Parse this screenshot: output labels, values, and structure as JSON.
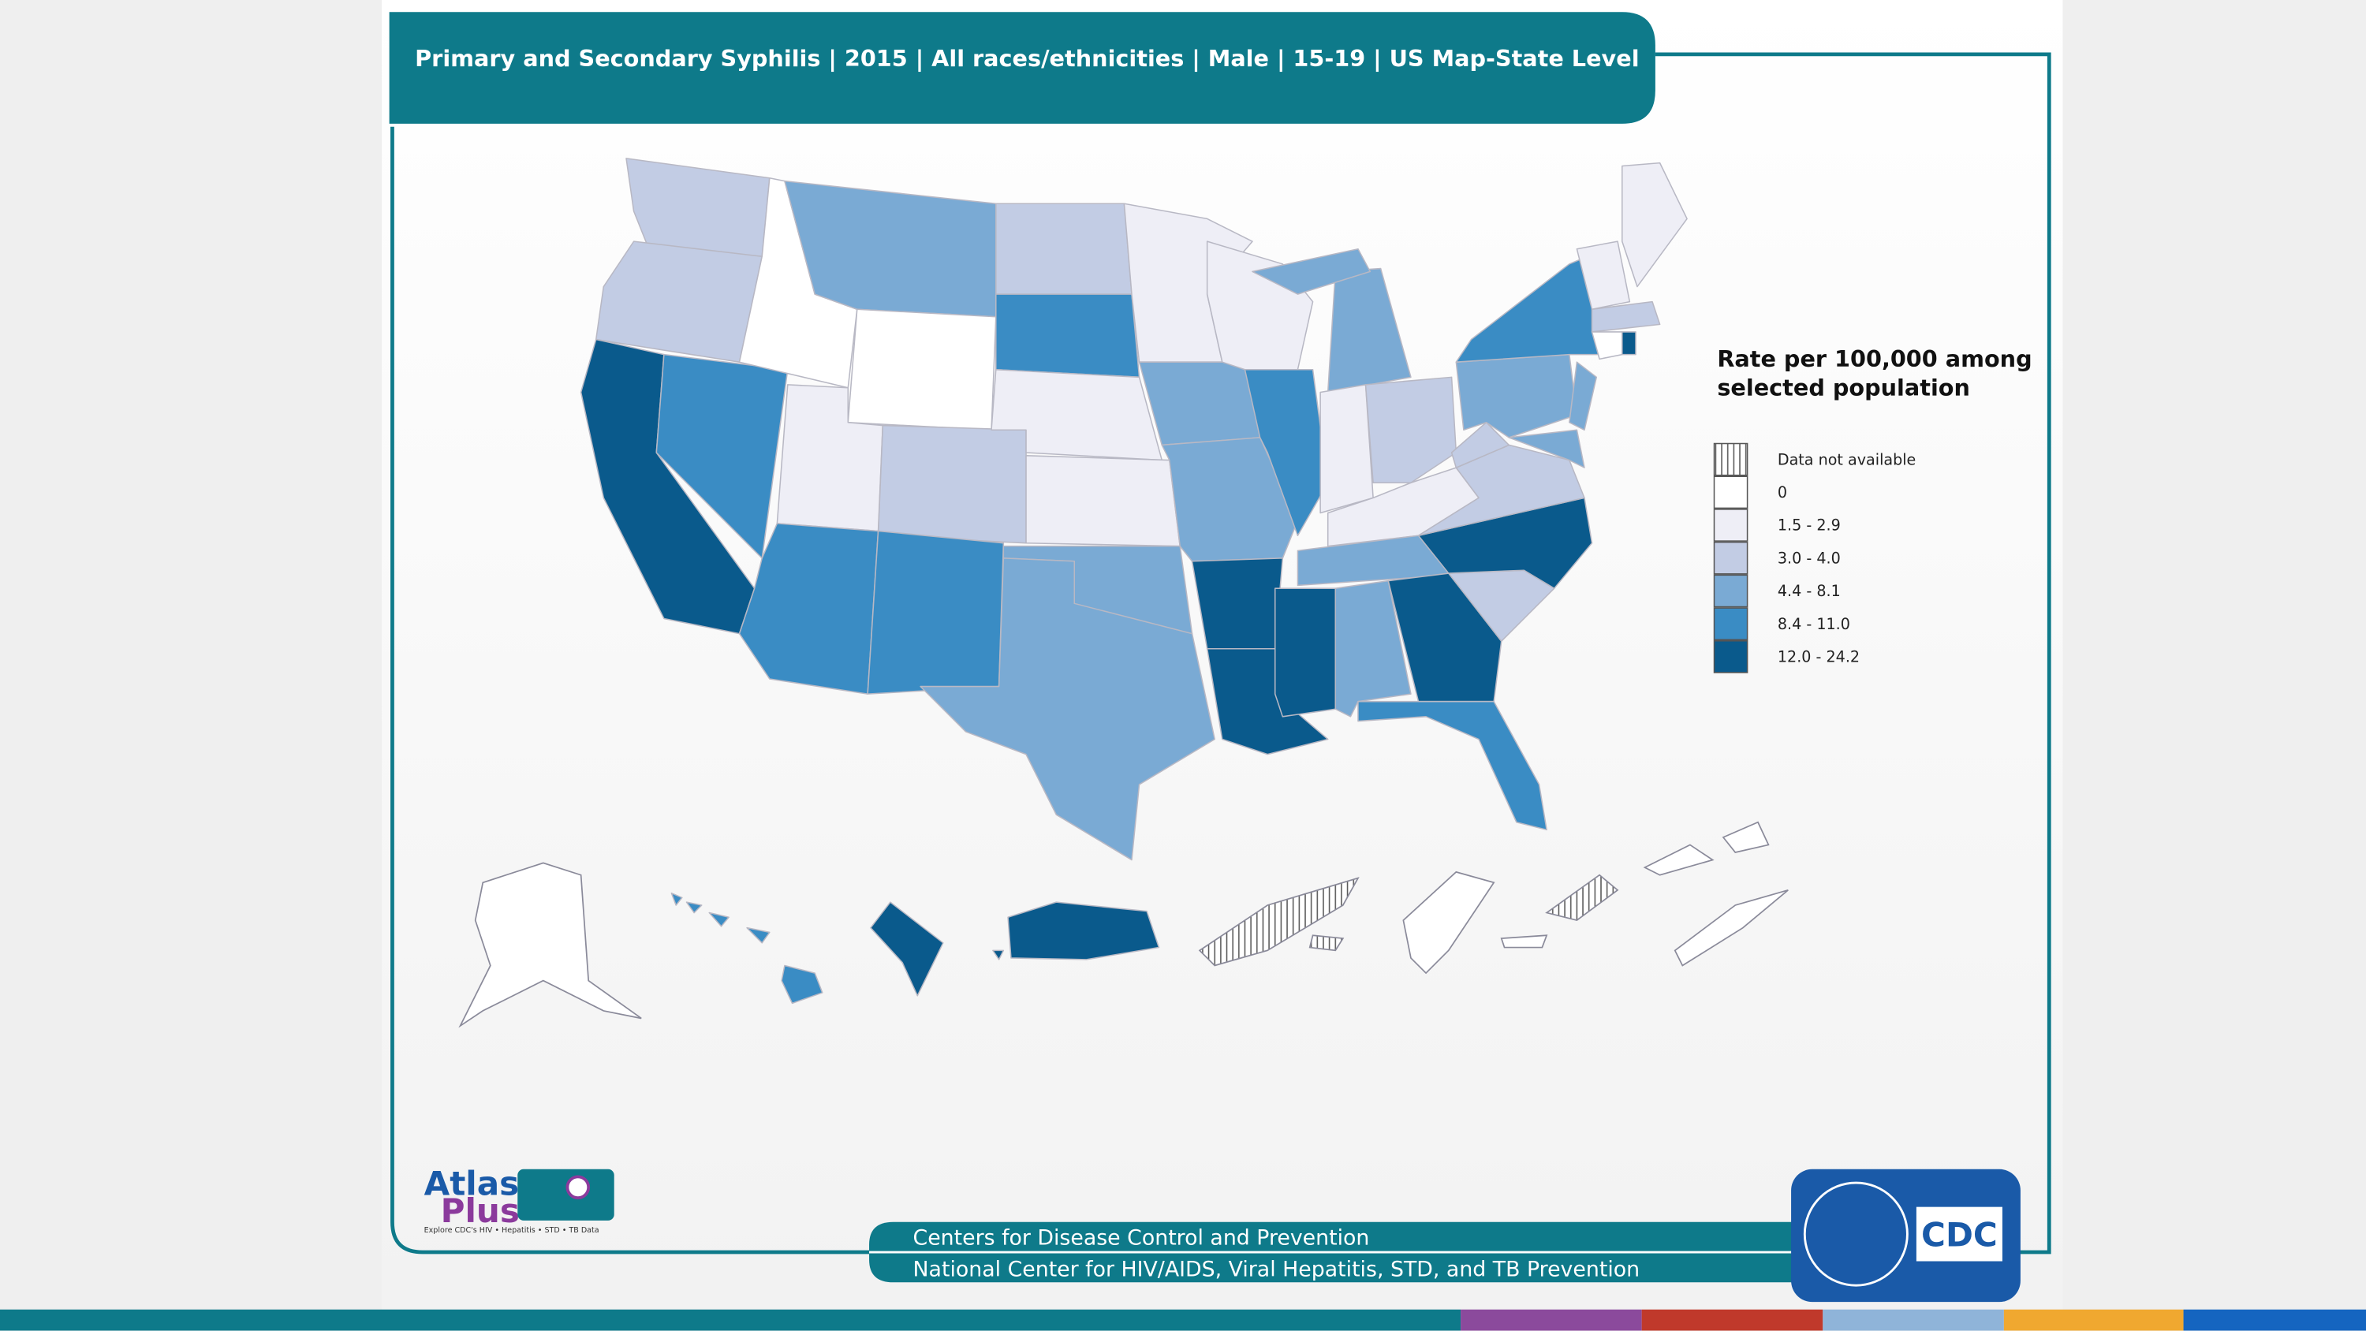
{
  "header": {
    "title": "Primary and Secondary Syphilis | 2015 | All races/ethnicities | Male | 15-19 | US Map-State Level"
  },
  "legend": {
    "title": "Rate per 100,000 among",
    "subtitle": "selected population",
    "items": [
      {
        "label": "Data not available",
        "color": "hatch"
      },
      {
        "label": "0",
        "color": "#ffffff"
      },
      {
        "label": "1.5 - 2.9",
        "color": "#eeeef6"
      },
      {
        "label": "3.0 - 4.0",
        "color": "#c2cce4"
      },
      {
        "label": "4.4 - 8.1",
        "color": "#7aaad4"
      },
      {
        "label": "8.4 - 11.0",
        "color": "#3a8cc4"
      },
      {
        "label": "12.0 - 24.2",
        "color": "#0a5a8c"
      }
    ]
  },
  "logos": {
    "atlas": "Atlas",
    "plus": "Plus",
    "tagline": "Explore CDC's HIV • Hepatitis • STD • TB Data",
    "cdc": "CDC"
  },
  "footer": {
    "line1": "Centers for Disease Control and Prevention",
    "line2": "National Center for HIV/AIDS, Viral Hepatitis, STD, and TB Prevention"
  }
}
